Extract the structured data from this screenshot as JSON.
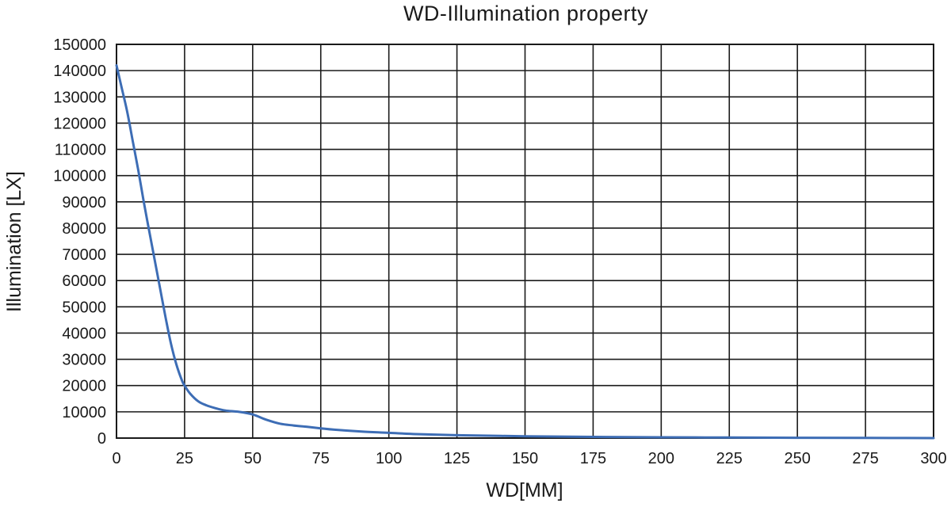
{
  "chart_data": {
    "type": "line",
    "title": "WD-Illumination property",
    "xlabel": "WD[MM]",
    "ylabel": "Illumination [LX]",
    "xlim": [
      0,
      300
    ],
    "ylim": [
      0,
      150000
    ],
    "x_ticks": [
      0,
      25,
      50,
      75,
      100,
      125,
      150,
      175,
      200,
      225,
      250,
      275,
      300
    ],
    "y_ticks": [
      0,
      10000,
      20000,
      30000,
      40000,
      50000,
      60000,
      70000,
      80000,
      90000,
      100000,
      110000,
      120000,
      130000,
      140000,
      150000
    ],
    "grid": true,
    "series_color": "#3d6db5",
    "series": [
      {
        "x": [
          0,
          2,
          4,
          6,
          8,
          10,
          12,
          14,
          16,
          18,
          20,
          22,
          24,
          25,
          27,
          30,
          33,
          36,
          40,
          45,
          50,
          55,
          60,
          65,
          70,
          75,
          80,
          90,
          100,
          110,
          125,
          150,
          175,
          200,
          225,
          250,
          275,
          300
        ],
        "y": [
          142000,
          133000,
          124000,
          113000,
          102000,
          90000,
          79000,
          68000,
          57000,
          46000,
          36000,
          28000,
          22000,
          20000,
          17000,
          14000,
          12500,
          11500,
          10500,
          10000,
          9000,
          7000,
          5500,
          4800,
          4300,
          3700,
          3200,
          2500,
          2000,
          1500,
          1100,
          700,
          450,
          300,
          200,
          120,
          60,
          0
        ]
      }
    ]
  }
}
